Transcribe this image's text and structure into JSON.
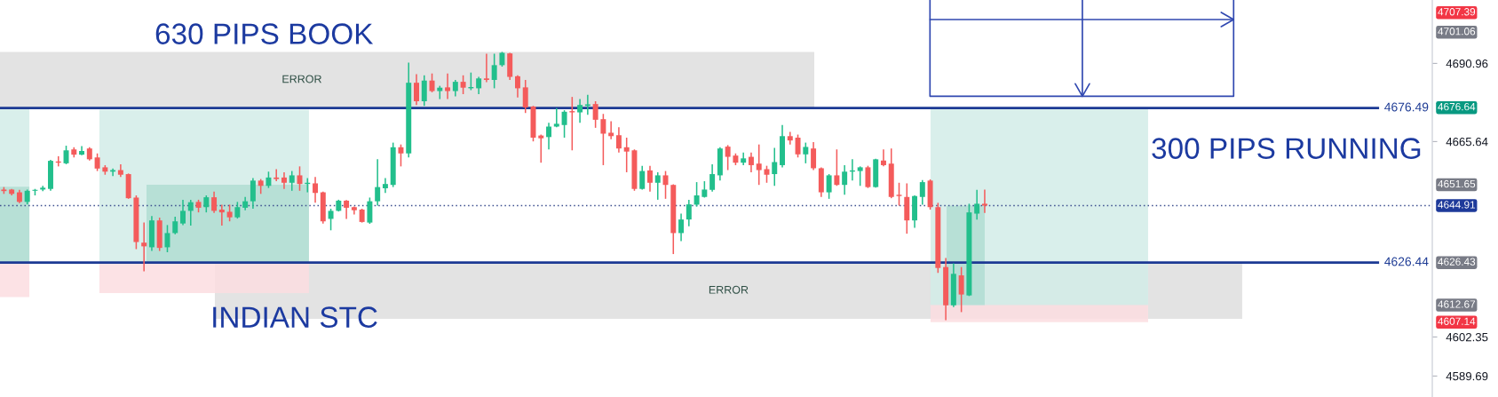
{
  "chart_data": {
    "type": "candlestick",
    "categories": [
      null,
      null,
      null,
      null,
      null,
      null,
      null,
      null,
      null,
      null,
      null,
      null,
      null,
      null,
      null,
      null,
      null,
      null,
      null,
      null,
      null,
      null,
      null,
      null,
      null,
      null,
      null,
      null,
      null,
      null,
      null,
      null,
      null,
      null,
      null,
      null,
      null,
      null,
      null,
      null,
      null,
      null,
      null,
      null,
      null,
      null,
      null,
      null,
      null,
      null,
      null,
      null,
      null,
      null,
      null,
      null,
      null,
      null,
      null,
      null,
      null,
      null,
      null,
      null,
      null,
      null,
      null,
      null,
      null,
      null,
      null,
      null,
      null,
      null,
      null,
      null,
      null,
      null,
      null,
      null,
      null,
      null,
      null,
      null,
      null,
      null,
      null,
      null,
      null,
      null,
      null,
      null,
      null,
      null,
      null,
      null,
      null,
      null,
      null,
      null,
      null,
      null,
      null,
      null,
      null,
      null,
      null,
      null,
      null,
      null,
      null,
      null,
      null,
      null,
      null,
      null,
      null,
      null,
      null,
      null,
      null,
      null,
      null,
      null,
      null,
      null,
      null,
      null,
      null,
      null,
      null,
      null,
      null,
      null,
      null,
      null,
      null,
      null,
      null,
      null,
      null,
      null,
      null,
      null,
      null,
      null,
      null,
      null,
      null,
      null,
      null,
      null,
      null,
      null,
      null,
      null,
      null,
      null,
      null,
      null,
      null,
      null,
      null,
      null,
      null,
      null,
      null,
      null,
      null,
      null,
      null,
      null,
      null,
      null,
      null,
      null,
      null,
      null,
      null,
      null,
      null,
      null,
      null,
      null
    ],
    "ohlc": [
      [
        4650.1,
        4650.9,
        4648.7,
        4649.6
      ],
      [
        4650.1,
        4650.3,
        4648.2,
        4648.7
      ],
      [
        4649.2,
        4650.0,
        4645.7,
        4646.1
      ],
      [
        4646.1,
        4650.1,
        4645.3,
        4649.7
      ],
      [
        4649.7,
        4650.3,
        4648.2,
        4650.0
      ],
      [
        4650.1,
        4651.3,
        4649.6,
        4650.7
      ],
      [
        4650.3,
        4659.7,
        4649.7,
        4659.4
      ],
      [
        4659.2,
        4660.9,
        4657.6,
        4658.8
      ],
      [
        4658.6,
        4664.3,
        4658.3,
        4662.8
      ],
      [
        4663.1,
        4663.8,
        4660.5,
        4661.4
      ],
      [
        4661.4,
        4664.2,
        4661.2,
        4662.6
      ],
      [
        4663.4,
        4663.8,
        4659.5,
        4659.9
      ],
      [
        4660.5,
        4661.8,
        4656.1,
        4656.9
      ],
      [
        4657.3,
        4658.0,
        4654.9,
        4655.9
      ],
      [
        4655.9,
        4656.9,
        4654.5,
        4656.4
      ],
      [
        4656.4,
        4658.3,
        4654.2,
        4654.9
      ],
      [
        4655.1,
        4655.3,
        4647.1,
        4647.3
      ],
      [
        4647.5,
        4648.2,
        4630.8,
        4633.1
      ],
      [
        4632.9,
        4639.4,
        4623.6,
        4631.7
      ],
      [
        4631.4,
        4641.5,
        4630.2,
        4640.1
      ],
      [
        4640.1,
        4641.0,
        4630.2,
        4631.2
      ],
      [
        4631.4,
        4638.6,
        4629.8,
        4636.0
      ],
      [
        4636.0,
        4641.3,
        4635.6,
        4639.8
      ],
      [
        4639.1,
        4646.8,
        4638.6,
        4643.2
      ],
      [
        4643.2,
        4646.8,
        4638.4,
        4646.0
      ],
      [
        4646.1,
        4646.8,
        4642.7,
        4644.2
      ],
      [
        4644.4,
        4648.2,
        4642.7,
        4647.6
      ],
      [
        4647.6,
        4649.4,
        4642.5,
        4643.2
      ],
      [
        4643.6,
        4645.2,
        4638.4,
        4642.7
      ],
      [
        4642.9,
        4645.2,
        4639.8,
        4641.1
      ],
      [
        4641.1,
        4646.1,
        4640.7,
        4644.4
      ],
      [
        4644.2,
        4647.7,
        4643.4,
        4646.3
      ],
      [
        4646.3,
        4653.8,
        4643.9,
        4653.0
      ],
      [
        4653.0,
        4653.5,
        4648.7,
        4651.3
      ],
      [
        4651.3,
        4655.9,
        4650.6,
        4654.0
      ],
      [
        4654.0,
        4656.7,
        4652.8,
        4653.5
      ],
      [
        4654.0,
        4655.7,
        4650.3,
        4652.3
      ],
      [
        4652.3,
        4656.1,
        4649.7,
        4654.7
      ],
      [
        4654.7,
        4657.6,
        4649.7,
        4651.9
      ],
      [
        4651.9,
        4653.8,
        4649.2,
        4652.3
      ],
      [
        4652.1,
        4654.2,
        4645.8,
        4649.0
      ],
      [
        4649.2,
        4649.4,
        4639.1,
        4639.8
      ],
      [
        4640.6,
        4643.9,
        4636.9,
        4643.2
      ],
      [
        4643.2,
        4646.8,
        4643.0,
        4646.5
      ],
      [
        4646.5,
        4646.7,
        4640.6,
        4644.2
      ],
      [
        4644.4,
        4644.6,
        4642.0,
        4643.4
      ],
      [
        4643.6,
        4643.9,
        4639.4,
        4639.6
      ],
      [
        4639.4,
        4647.5,
        4639.0,
        4646.3
      ],
      [
        4646.3,
        4659.9,
        4644.9,
        4650.9
      ],
      [
        4650.5,
        4653.8,
        4649.0,
        4651.9
      ],
      [
        4651.6,
        4665.3,
        4650.9,
        4663.8
      ],
      [
        4663.8,
        4664.7,
        4657.6,
        4661.8
      ],
      [
        4661.8,
        4691.2,
        4660.5,
        4684.7
      ],
      [
        4684.7,
        4687.5,
        4677.5,
        4678.7
      ],
      [
        4678.7,
        4687.1,
        4677.2,
        4685.4
      ],
      [
        4685.4,
        4687.7,
        4681.6,
        4682.0
      ],
      [
        4682.0,
        4683.7,
        4679.4,
        4683.1
      ],
      [
        4683.2,
        4687.7,
        4679.4,
        4682.0
      ],
      [
        4682.0,
        4685.6,
        4680.3,
        4685.0
      ],
      [
        4685.0,
        4687.1,
        4681.0,
        4683.1
      ],
      [
        4682.9,
        4688.0,
        4682.3,
        4683.3
      ],
      [
        4682.9,
        4686.6,
        4681.0,
        4686.1
      ],
      [
        4686.1,
        4694.1,
        4684.9,
        4685.6
      ],
      [
        4685.6,
        4694.1,
        4682.9,
        4690.4
      ],
      [
        4690.4,
        4694.7,
        4689.9,
        4694.4
      ],
      [
        4694.2,
        4694.4,
        4685.6,
        4686.6
      ],
      [
        4686.8,
        4687.1,
        4679.9,
        4682.9
      ],
      [
        4683.2,
        4685.6,
        4674.9,
        4676.7
      ],
      [
        4677.0,
        4677.2,
        4665.7,
        4666.9
      ],
      [
        4667.6,
        4667.9,
        4658.8,
        4666.7
      ],
      [
        4667.1,
        4671.7,
        4663.1,
        4670.5
      ],
      [
        4670.5,
        4676.5,
        4670.3,
        4671.4
      ],
      [
        4671.0,
        4675.8,
        4666.9,
        4675.3
      ],
      [
        4675.5,
        4680.1,
        4662.8,
        4675.1
      ],
      [
        4675.1,
        4679.4,
        4671.7,
        4677.5
      ],
      [
        4677.2,
        4680.8,
        4674.3,
        4677.7
      ],
      [
        4677.8,
        4678.7,
        4670.1,
        4672.7
      ],
      [
        4672.9,
        4674.6,
        4658.0,
        4668.2
      ],
      [
        4668.5,
        4672.2,
        4666.4,
        4667.4
      ],
      [
        4667.7,
        4670.3,
        4662.1,
        4663.4
      ],
      [
        4663.8,
        4666.9,
        4655.7,
        4662.4
      ],
      [
        4662.8,
        4663.1,
        4649.7,
        4650.3
      ],
      [
        4650.3,
        4657.8,
        4650.1,
        4656.1
      ],
      [
        4656.3,
        4657.8,
        4649.4,
        4652.3
      ],
      [
        4652.3,
        4655.7,
        4646.8,
        4654.7
      ],
      [
        4654.7,
        4656.1,
        4647.1,
        4651.6
      ],
      [
        4651.6,
        4651.8,
        4629.2,
        4636.0
      ],
      [
        4636.0,
        4642.3,
        4633.4,
        4640.4
      ],
      [
        4640.4,
        4646.8,
        4638.2,
        4645.3
      ],
      [
        4645.2,
        4652.5,
        4644.6,
        4648.2
      ],
      [
        4647.7,
        4652.8,
        4647.5,
        4650.1
      ],
      [
        4650.0,
        4658.3,
        4649.4,
        4655.1
      ],
      [
        4654.7,
        4663.8,
        4653.0,
        4663.4
      ],
      [
        4664.0,
        4664.5,
        4656.4,
        4660.7
      ],
      [
        4661.1,
        4661.8,
        4658.0,
        4658.8
      ],
      [
        4658.8,
        4662.1,
        4658.0,
        4660.2
      ],
      [
        4660.7,
        4662.1,
        4655.7,
        4658.0
      ],
      [
        4658.5,
        4664.7,
        4651.6,
        4656.4
      ],
      [
        4656.7,
        4657.8,
        4652.3,
        4654.9
      ],
      [
        4655.1,
        4663.6,
        4651.3,
        4659.0
      ],
      [
        4658.0,
        4671.0,
        4657.3,
        4667.4
      ],
      [
        4667.4,
        4668.8,
        4664.7,
        4666.0
      ],
      [
        4666.9,
        4667.9,
        4660.5,
        4661.5
      ],
      [
        4661.5,
        4665.3,
        4658.6,
        4663.9
      ],
      [
        4663.4,
        4665.5,
        4656.4,
        4657.0
      ],
      [
        4657.0,
        4657.3,
        4647.7,
        4649.2
      ],
      [
        4649.2,
        4655.1,
        4647.1,
        4654.7
      ],
      [
        4654.7,
        4663.1,
        4651.3,
        4651.6
      ],
      [
        4651.6,
        4658.0,
        4648.4,
        4655.9
      ],
      [
        4655.9,
        4659.9,
        4653.0,
        4656.3
      ],
      [
        4656.1,
        4657.6,
        4651.3,
        4657.3
      ],
      [
        4657.3,
        4657.8,
        4650.6,
        4650.9
      ],
      [
        4650.9,
        4660.1,
        4650.7,
        4659.9
      ],
      [
        4659.5,
        4663.1,
        4657.6,
        4658.0
      ],
      [
        4658.5,
        4663.4,
        4647.3,
        4647.7
      ],
      [
        4648.4,
        4652.3,
        4644.9,
        4648.0
      ],
      [
        4647.7,
        4652.1,
        4635.8,
        4640.1
      ],
      [
        4640.1,
        4648.2,
        4637.7,
        4648.0
      ],
      [
        4647.7,
        4653.2,
        4645.2,
        4652.5
      ],
      [
        4653.0,
        4653.4,
        4643.6,
        4644.4
      ],
      [
        4644.4,
        4645.8,
        4623.1,
        4624.7
      ],
      [
        4625.0,
        4627.9,
        4607.8,
        4612.6
      ],
      [
        4612.6,
        4626.2,
        4612.0,
        4622.8
      ],
      [
        4622.3,
        4625.0,
        4610.4,
        4616.1
      ],
      [
        4615.8,
        4645.5,
        4615.6,
        4642.7
      ],
      [
        4642.3,
        4650.0,
        4640.4,
        4645.5
      ],
      [
        4645.5,
        4650.1,
        4642.5,
        4644.9
      ],
      null,
      null,
      null,
      null,
      null,
      null,
      null,
      null,
      null,
      null,
      null,
      null,
      null,
      null,
      null,
      null,
      null,
      null,
      null,
      null,
      null,
      null,
      null,
      null,
      null,
      null,
      null,
      null,
      null,
      null,
      null,
      null,
      null,
      null,
      null,
      null,
      null,
      null,
      null,
      null,
      null,
      null,
      null,
      null,
      null,
      null,
      null,
      null,
      null,
      null,
      null,
      null,
      null,
      null,
      null,
      null,
      null
    ],
    "colors": [
      "#f45b5b",
      "#f45b5b",
      "#f45b5b",
      "#22bf8c",
      "#22bf8c",
      "#22bf8c",
      "#22bf8c",
      "#f45b5b",
      "#22bf8c",
      "#f45b5b",
      "#22bf8c",
      "#f45b5b",
      "#f45b5b",
      "#f45b5b",
      "#22bf8c",
      "#f45b5b",
      "#f45b5b",
      "#f45b5b",
      "#f45b5b",
      "#22bf8c",
      "#f45b5b",
      "#22bf8c",
      "#22bf8c",
      "#22bf8c",
      "#22bf8c",
      "#f45b5b",
      "#22bf8c",
      "#f45b5b",
      "#f45b5b",
      "#f45b5b",
      "#22bf8c",
      "#22bf8c",
      "#22bf8c",
      "#f45b5b",
      "#22bf8c",
      "#f45b5b",
      "#f45b5b",
      "#22bf8c",
      "#f45b5b",
      "#22bf8c",
      "#f45b5b",
      "#f45b5b",
      "#22bf8c",
      "#22bf8c",
      "#f45b5b",
      "#f45b5b",
      "#f45b5b",
      "#22bf8c",
      "#22bf8c",
      "#22bf8c",
      "#22bf8c",
      "#f45b5b",
      "#22bf8c",
      "#f45b5b",
      "#22bf8c",
      "#f45b5b",
      "#22bf8c",
      "#f45b5b",
      "#22bf8c",
      "#f45b5b",
      "#22bf8c",
      "#22bf8c",
      "#f45b5b",
      "#22bf8c",
      "#22bf8c",
      "#f45b5b",
      "#f45b5b",
      "#f45b5b",
      "#f45b5b",
      "#f45b5b",
      "#22bf8c",
      "#22bf8c",
      "#22bf8c",
      "#f45b5b",
      "#22bf8c",
      "#22bf8c",
      "#f45b5b",
      "#f45b5b",
      "#f45b5b",
      "#f45b5b",
      "#f45b5b",
      "#f45b5b",
      "#22bf8c",
      "#f45b5b",
      "#22bf8c",
      "#f45b5b",
      "#f45b5b",
      "#22bf8c",
      "#22bf8c",
      "#22bf8c",
      "#22bf8c",
      "#22bf8c",
      "#22bf8c",
      "#f45b5b",
      "#f45b5b",
      "#22bf8c",
      "#f45b5b",
      "#f45b5b",
      "#f45b5b",
      "#22bf8c",
      "#22bf8c",
      "#f45b5b",
      "#f45b5b",
      "#22bf8c",
      "#f45b5b",
      "#f45b5b",
      "#22bf8c",
      "#f45b5b",
      "#22bf8c",
      "#22bf8c",
      "#22bf8c",
      "#f45b5b",
      "#22bf8c",
      "#f45b5b",
      "#f45b5b",
      "#f45b5b",
      "#f45b5b",
      "#22bf8c",
      "#22bf8c",
      "#f45b5b",
      "#f45b5b",
      "#f45b5b",
      "#22bf8c",
      "#f45b5b",
      "#22bf8c",
      "#22bf8c",
      "#f45b5b",
      null,
      null,
      null,
      null,
      null,
      null,
      null,
      null,
      null,
      null,
      null,
      null,
      null,
      null,
      null,
      null,
      null,
      null,
      null,
      null,
      null,
      null,
      null,
      null,
      null,
      null,
      null,
      null,
      null,
      null,
      null,
      null,
      null,
      null,
      null,
      null,
      null,
      null,
      null,
      null,
      null,
      null,
      null,
      null,
      null,
      null,
      null,
      null,
      null,
      null,
      null,
      null,
      null,
      null,
      null,
      null,
      null
    ],
    "ylim": [
      4582.9,
      4711.5
    ],
    "yticks": [
      4589.69,
      4602.35,
      4665.64,
      4690.96
    ],
    "tick_labels": "y",
    "ref_lines": [
      {
        "axis": "y",
        "value": 4676.49,
        "label": "4676.49",
        "color": "#1c3a94",
        "line_style": "solid"
      },
      {
        "axis": "y",
        "value": 4626.44,
        "label": "4626.44",
        "color": "#1c3a94",
        "line_style": "solid"
      },
      {
        "axis": "y",
        "value": 4644.91,
        "color": "#3d4f8f",
        "line_style": "dotted"
      }
    ],
    "bands": [
      {
        "axis": "y",
        "from": 4676.49,
        "to": 4694.7,
        "label": "ERROR",
        "color": "#dedede"
      },
      {
        "axis": "y",
        "from": 4608.2,
        "to": 4626.44,
        "label": "ERROR",
        "color": "#dedede"
      },
      {
        "axis": "y",
        "from": 4626.43,
        "to": 4676.0,
        "color": "#d2ece7"
      },
      {
        "axis": "y",
        "from": 4616.56,
        "to": 4626.43,
        "color": "#fbdde0"
      },
      {
        "axis": "y",
        "from": 4626.43,
        "to": 4651.65,
        "color": "#b0ddd2"
      },
      {
        "axis": "y",
        "from": 4612.67,
        "to": 4676.64,
        "color": "#d2ece7"
      },
      {
        "axis": "y",
        "from": 4607.14,
        "to": 4612.67,
        "color": "#fbdde0"
      }
    ],
    "annotations": [
      "630 PIPS BOOK",
      "INDIAN STC",
      "300 PIPS RUNNING",
      "4707.39",
      "4701.06",
      "4676.64",
      "4651.65",
      "4644.91",
      "4626.43",
      "4612.67",
      "4607.14"
    ]
  }
}
